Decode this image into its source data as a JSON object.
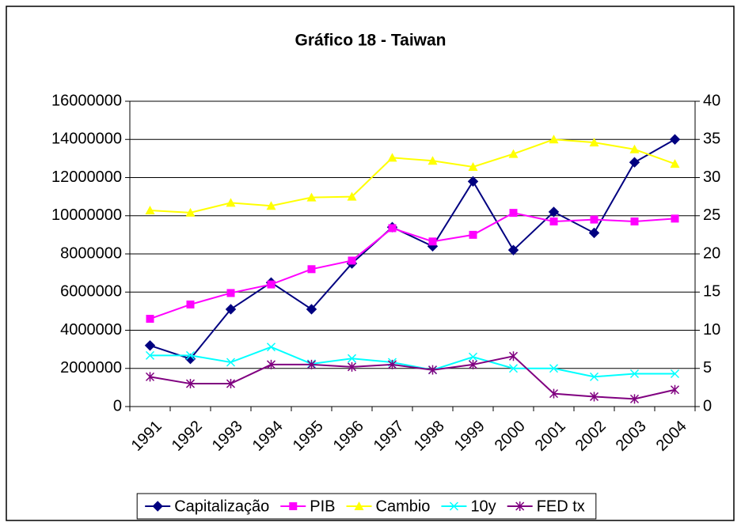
{
  "chart_data": {
    "type": "line",
    "title": "Gráfico 18 - Taiwan",
    "categories": [
      "1991",
      "1992",
      "1993",
      "1994",
      "1995",
      "1996",
      "1997",
      "1998",
      "1999",
      "2000",
      "2001",
      "2002",
      "2003",
      "2004"
    ],
    "series": [
      {
        "name": "Capitalização",
        "color": "#000080",
        "marker": "diamond",
        "values": [
          3200000,
          2500000,
          5100000,
          6500000,
          5100000,
          7500000,
          9400000,
          8400000,
          11800000,
          8200000,
          10200000,
          9100000,
          12800000,
          14000000
        ]
      },
      {
        "name": "PIB",
        "color": "#FF00FF",
        "marker": "square",
        "values": [
          4600000,
          5350000,
          5950000,
          6400000,
          7200000,
          7650000,
          9350000,
          8650000,
          9000000,
          10150000,
          9700000,
          9800000,
          9700000,
          9850000
        ]
      },
      {
        "name": "Cambio",
        "color": "#FFFF00",
        "marker": "triangle",
        "axis": "y2",
        "values": [
          25.7,
          25.4,
          26.7,
          26.3,
          27.4,
          27.5,
          32.6,
          32.2,
          31.4,
          33.1,
          35,
          34.6,
          33.7,
          31.8
        ]
      },
      {
        "name": "10y",
        "color": "#00FFFF",
        "marker": "x",
        "axis": "y2",
        "values": [
          6.7,
          6.7,
          5.8,
          7.8,
          5.6,
          6.3,
          5.8,
          4.8,
          6.5,
          5,
          5,
          3.9,
          4.3,
          4.3
        ]
      },
      {
        "name": "FED tx",
        "color": "#800080",
        "marker": "star",
        "axis": "y2",
        "values": [
          3.9,
          3,
          3,
          5.5,
          5.5,
          5.2,
          5.5,
          4.8,
          5.5,
          6.6,
          1.7,
          1.3,
          1,
          2.2
        ]
      }
    ],
    "ylim": [
      0,
      16000000
    ],
    "yticks": [
      0,
      2000000,
      4000000,
      6000000,
      8000000,
      10000000,
      12000000,
      14000000,
      16000000
    ],
    "y2lim": [
      0,
      40
    ],
    "y2ticks": [
      0,
      5,
      10,
      15,
      20,
      25,
      30,
      35,
      40
    ],
    "grid": true,
    "legend": "bottom"
  }
}
